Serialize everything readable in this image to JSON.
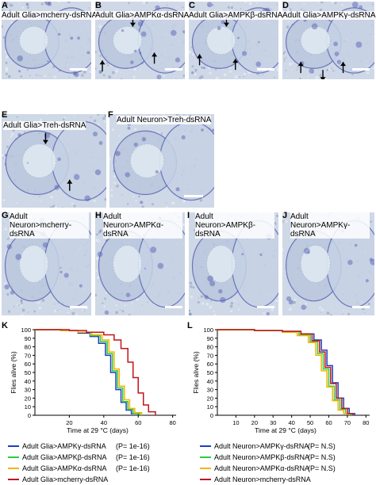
{
  "panels": [
    {
      "letter": "A",
      "label": "Adult Glia>mcherry-dsRNA"
    },
    {
      "letter": "B",
      "label": "Adult Glia>AMPKα-dsRNA"
    },
    {
      "letter": "C",
      "label": "Adult Glia>AMPKβ-dsRNA"
    },
    {
      "letter": "D",
      "label": "Adult Glia>AMPKγ-dsRNA"
    },
    {
      "letter": "E",
      "label": "Adult Glia>Treh-dsRNA"
    },
    {
      "letter": "F",
      "label": "Adult Neuron>Treh-dsRNA"
    },
    {
      "letter": "G",
      "label": "Adult Neuron>mcherry-dsRNA"
    },
    {
      "letter": "H",
      "label": "Adult Neuron>AMPKα-dsRNA"
    },
    {
      "letter": "I",
      "label": "Adult Neuron>AMPKβ-dsRNA"
    },
    {
      "letter": "J",
      "label": "Adult Neuron>AMPKγ-dsRNA"
    }
  ],
  "colors": {
    "blue": "#1f3fbf",
    "green": "#2ecc40",
    "orange": "#f4b400",
    "red": "#c0151a",
    "tissue": "#b9c7dd",
    "stain": "#5a63b5"
  },
  "chart_data": [
    {
      "type": "line",
      "panel": "K",
      "xlabel": "Time at 29 °C (days)",
      "ylabel": "Flies alive (%)",
      "x_ticks": [
        20,
        40,
        60,
        80
      ],
      "y_ticks": [
        0,
        10,
        20,
        30,
        40,
        50,
        60,
        70,
        80,
        90,
        100
      ],
      "xlim": [
        0,
        82
      ],
      "ylim": [
        0,
        100
      ],
      "series": [
        {
          "name": "Adult Glia>AMPKγ-dsRNA",
          "p": "(P= 1e-16)",
          "color": "#1f3fbf",
          "x": [
            0,
            15,
            25,
            32,
            37,
            41,
            44,
            47,
            50,
            53,
            56,
            60
          ],
          "y": [
            100,
            99,
            96,
            92,
            84,
            70,
            50,
            30,
            15,
            6,
            2,
            0
          ]
        },
        {
          "name": "Adult Glia>AMPKβ-dsRNA",
          "p": "(P= 1e-16)",
          "color": "#2ecc40",
          "x": [
            0,
            15,
            25,
            32,
            38,
            42,
            45,
            48,
            51,
            54,
            57,
            61
          ],
          "y": [
            100,
            99,
            97,
            93,
            86,
            72,
            52,
            32,
            16,
            7,
            2,
            0
          ]
        },
        {
          "name": "Adult Glia>AMPKα-dsRNA",
          "p": "(P= 1e-16)",
          "color": "#f4b400",
          "x": [
            0,
            15,
            25,
            33,
            39,
            43,
            46,
            49,
            52,
            55,
            58,
            62
          ],
          "y": [
            100,
            99,
            97,
            94,
            88,
            74,
            54,
            34,
            18,
            8,
            3,
            0
          ]
        },
        {
          "name": "Adult Glia>mcherry-dsRNA",
          "p": "",
          "color": "#c0151a",
          "x": [
            0,
            20,
            30,
            40,
            46,
            50,
            54,
            57,
            60,
            63,
            66,
            70
          ],
          "y": [
            100,
            99,
            97,
            94,
            88,
            78,
            62,
            44,
            26,
            12,
            4,
            0
          ]
        }
      ]
    },
    {
      "type": "line",
      "panel": "L",
      "xlabel": "Time at 29 °C (days)",
      "ylabel": "Flies alive (%)",
      "x_ticks": [
        10,
        20,
        30,
        40,
        50,
        60,
        70,
        80
      ],
      "y_ticks": [
        0,
        10,
        20,
        30,
        40,
        50,
        60,
        70,
        80,
        90,
        100
      ],
      "xlim": [
        0,
        82
      ],
      "ylim": [
        0,
        100
      ],
      "series": [
        {
          "name": "Adult Neuron>AMPKγ-dsRNA",
          "p": "(P= N.S)",
          "color": "#1f3fbf",
          "x": [
            0,
            20,
            35,
            45,
            52,
            56,
            59,
            62,
            65,
            68,
            71,
            74
          ],
          "y": [
            100,
            99,
            98,
            95,
            88,
            76,
            58,
            38,
            20,
            8,
            2,
            0
          ]
        },
        {
          "name": "Adult Neuron>AMPKβ-dsRNA",
          "p": "(P= N.S)",
          "color": "#2ecc40",
          "x": [
            0,
            20,
            35,
            44,
            50,
            54,
            57,
            60,
            63,
            66,
            69,
            72
          ],
          "y": [
            100,
            99,
            98,
            94,
            86,
            72,
            54,
            34,
            18,
            7,
            2,
            0
          ]
        },
        {
          "name": "Adult Neuron>AMPKα-dsRNA",
          "p": "(P= N.S)",
          "color": "#f4b400",
          "x": [
            0,
            20,
            35,
            43,
            49,
            53,
            56,
            59,
            62,
            65,
            68,
            71
          ],
          "y": [
            100,
            99,
            97,
            93,
            85,
            70,
            52,
            33,
            17,
            6,
            2,
            0
          ]
        },
        {
          "name": "Adult Neuron>mcherry-dsRNA",
          "p": "",
          "color": "#c0151a",
          "x": [
            0,
            20,
            35,
            45,
            51,
            55,
            58,
            61,
            64,
            67,
            70,
            73
          ],
          "y": [
            100,
            99,
            98,
            95,
            87,
            74,
            56,
            37,
            20,
            8,
            2,
            0
          ]
        }
      ]
    }
  ]
}
